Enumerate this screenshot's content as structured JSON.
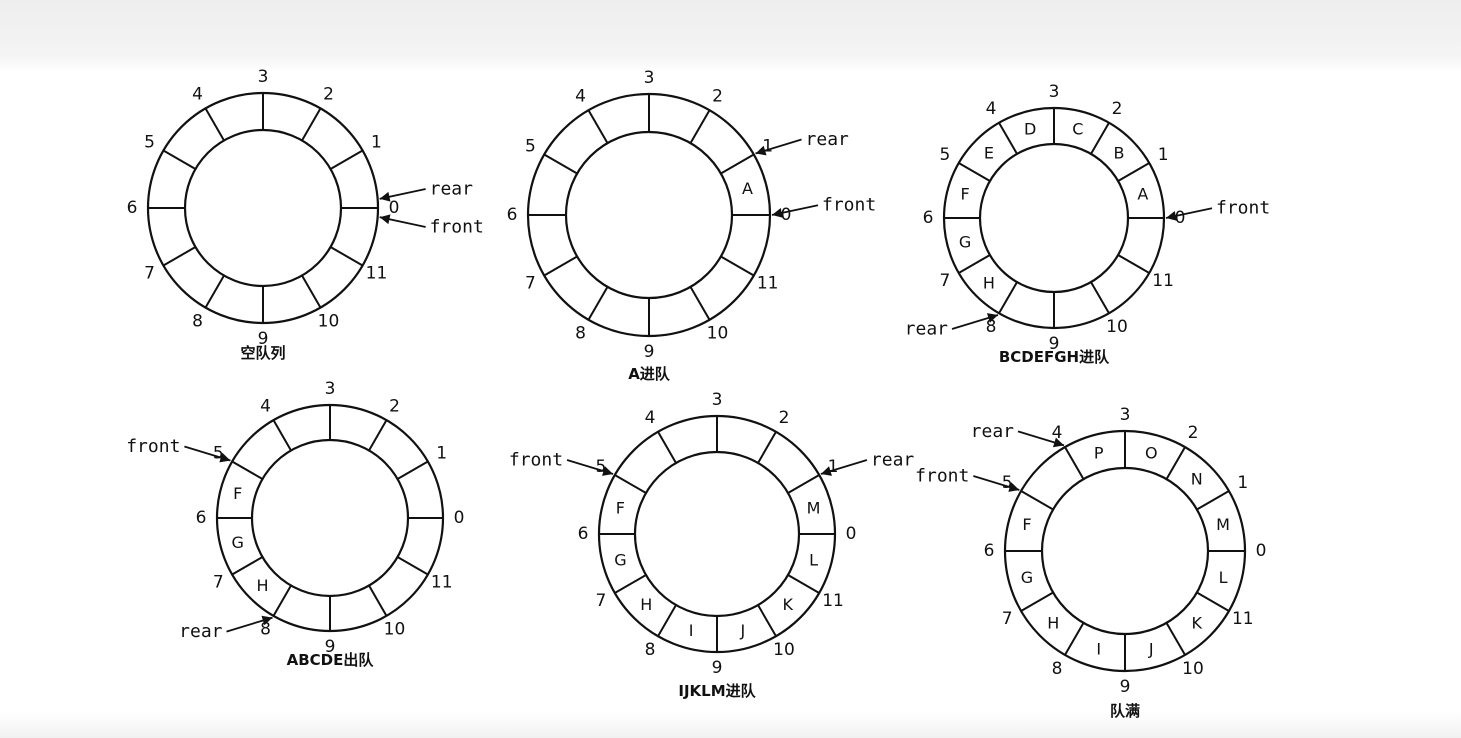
{
  "queues": [
    {
      "caption": "空队列",
      "cells": [
        "",
        "",
        "",
        "",
        "",
        "",
        "",
        "",
        "",
        "",
        "",
        ""
      ],
      "pointers": [
        {
          "label": "rear",
          "slot": 0.15
        },
        {
          "label": "front",
          "slot": -0.15
        }
      ]
    },
    {
      "caption": "A进队",
      "cells": [
        "",
        "A",
        "",
        "",
        "",
        "",
        "",
        "",
        "",
        "",
        "",
        ""
      ],
      "pointers": [
        {
          "label": "rear",
          "slot": 1
        },
        {
          "label": "front",
          "slot": 0
        }
      ]
    },
    {
      "caption": "BCDEFGH进队",
      "cells": [
        "",
        "A",
        "B",
        "C",
        "D",
        "E",
        "F",
        "G",
        "H",
        "",
        "",
        ""
      ],
      "pointers": [
        {
          "label": "front",
          "slot": 0
        },
        {
          "label": "rear",
          "slot": 8
        }
      ]
    },
    {
      "caption": "ABCDE出队",
      "cells": [
        "",
        "",
        "",
        "",
        "",
        "",
        "F",
        "G",
        "H",
        "",
        "",
        ""
      ],
      "pointers": [
        {
          "label": "front",
          "slot": 5
        },
        {
          "label": "rear",
          "slot": 8
        }
      ]
    },
    {
      "caption": "IJKLM进队",
      "cells": [
        "L",
        "M",
        "",
        "",
        "",
        "",
        "F",
        "G",
        "H",
        "I",
        "J",
        "K"
      ],
      "pointers": [
        {
          "label": "rear",
          "slot": 1
        },
        {
          "label": "front",
          "slot": 5
        }
      ]
    },
    {
      "caption": "队满",
      "cells": [
        "L",
        "M",
        "N",
        "O",
        "P",
        "",
        "F",
        "G",
        "H",
        "I",
        "J",
        "K"
      ],
      "pointers": [
        {
          "label": "rear",
          "slot": 4
        },
        {
          "label": "front",
          "slot": 5
        }
      ]
    }
  ]
}
